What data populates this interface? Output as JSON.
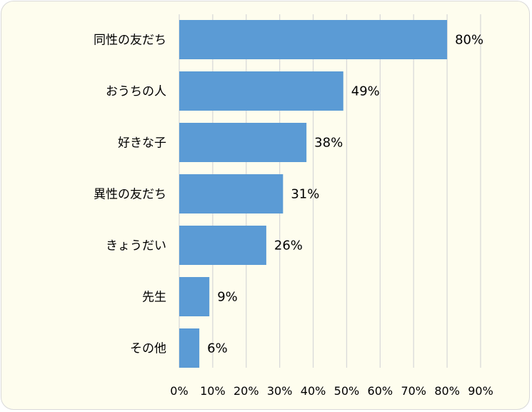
{
  "chart_data": {
    "type": "bar",
    "orientation": "horizontal",
    "title": "",
    "xlabel": "",
    "ylabel": "",
    "categories": [
      "同性の友だち",
      "おうちの人",
      "好きな子",
      "異性の友だち",
      "きょうだい",
      "先生",
      "その他"
    ],
    "values": [
      80,
      49,
      38,
      31,
      26,
      9,
      6
    ],
    "value_labels": [
      "80%",
      "49%",
      "38%",
      "31%",
      "26%",
      "9%",
      "6%"
    ],
    "xlim": [
      0,
      90
    ],
    "ticks": [
      "0%",
      "10%",
      "20%",
      "30%",
      "40%",
      "50%",
      "60%",
      "70%",
      "80%",
      "90%"
    ],
    "grid": "vertical",
    "legend": "none",
    "colors": {
      "bar": "#5b9bd5",
      "grid": "#d9d9d9",
      "background": "#fefdee",
      "text": "#000000"
    }
  }
}
